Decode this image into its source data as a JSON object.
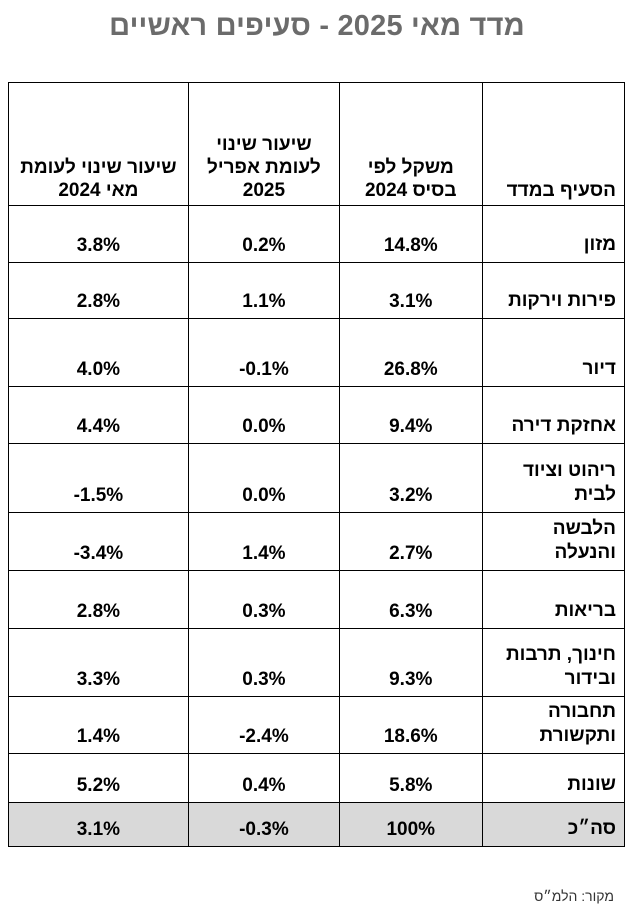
{
  "title": "מדד מאי 2025 - סעיפים ראשיים",
  "table": {
    "headers": {
      "category": "הסעיף במדד",
      "weight": "משקל לפי בסיס 2024",
      "change_april": "שיעור שינוי לעומת אפריל 2025",
      "change_may": "שיעור שינוי לעומת מאי 2024"
    },
    "rows": [
      {
        "category": "מזון",
        "weight": "14.8%",
        "change_april": "0.2%",
        "change_may": "3.8%"
      },
      {
        "category": "פירות וירקות",
        "weight": "3.1%",
        "change_april": "1.1%",
        "change_may": "2.8%"
      },
      {
        "category": "דיור",
        "weight": "26.8%",
        "change_april": "-0.1%",
        "change_may": "4.0%"
      },
      {
        "category": "אחזקת דירה",
        "weight": "9.4%",
        "change_april": "0.0%",
        "change_may": "4.4%"
      },
      {
        "category": "ריהוט וציוד לבית",
        "weight": "3.2%",
        "change_april": "0.0%",
        "change_may": "-1.5%"
      },
      {
        "category": "הלבשה והנעלה",
        "weight": "2.7%",
        "change_april": "1.4%",
        "change_may": "-3.4%"
      },
      {
        "category": "בריאות",
        "weight": "6.3%",
        "change_april": "0.3%",
        "change_may": "2.8%"
      },
      {
        "category": "חינוך, תרבות ובידור",
        "weight": "9.3%",
        "change_april": "0.3%",
        "change_may": "3.3%"
      },
      {
        "category": "תחבורה ותקשורת",
        "weight": "18.6%",
        "change_april": "-2.4%",
        "change_may": "1.4%"
      },
      {
        "category": "שונות",
        "weight": "5.8%",
        "change_april": "0.4%",
        "change_may": "5.2%"
      }
    ],
    "total": {
      "category": "סה״כ",
      "weight": "100%",
      "change_april": "-0.3%",
      "change_may": "3.1%"
    }
  },
  "source": "מקור: הלמ״ס"
}
